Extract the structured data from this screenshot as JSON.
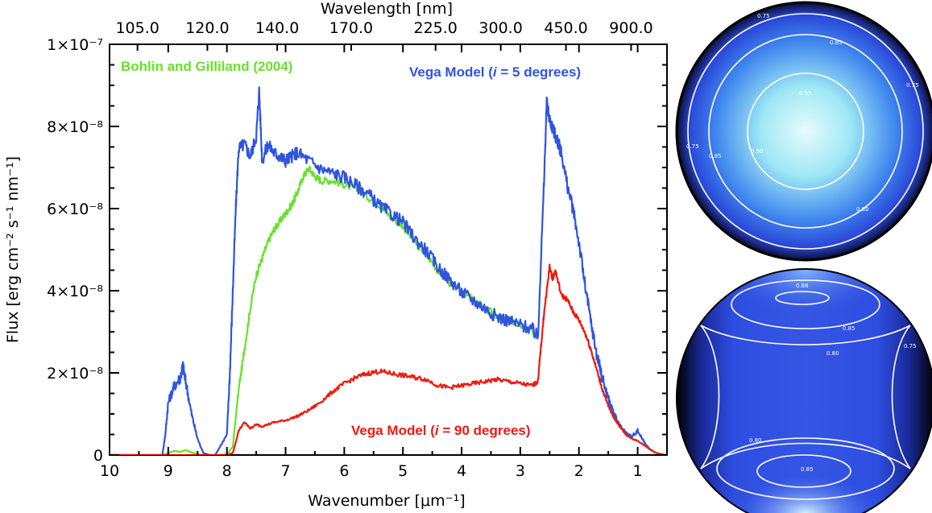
{
  "chart_data": {
    "type": "line",
    "x_axis": {
      "label": "Wavenumber [μm⁻¹]",
      "range": [
        10,
        0.5
      ],
      "ticks": [
        10,
        9,
        8,
        7,
        6,
        5,
        4,
        3,
        2,
        1
      ],
      "tick_labels": [
        "10",
        "9",
        "8",
        "7",
        "6",
        "5",
        "4",
        "3",
        "2",
        "1"
      ]
    },
    "top_axis": {
      "label": "Wavelength [nm]",
      "tick_labels": [
        "105.0",
        "120.0",
        "140.0",
        "170.0",
        "225.0",
        "300.0",
        "450.0",
        "900.0"
      ],
      "tick_wavenumbers": [
        9.524,
        8.333,
        7.143,
        5.882,
        4.444,
        3.333,
        2.222,
        1.111
      ]
    },
    "y_axis": {
      "label": "Flux [erg cm⁻² s⁻¹ nm⁻¹]",
      "range": [
        0,
        1e-07
      ],
      "ticks": [
        0,
        2e-08,
        4e-08,
        6e-08,
        8e-08,
        1e-07
      ],
      "tick_labels": [
        "0",
        "2×10⁻⁸",
        "4×10⁻⁸",
        "6×10⁻⁸",
        "8×10⁻⁸",
        "1×10⁻⁷"
      ]
    },
    "series": [
      {
        "name": "Bohlin and Gilliland (2004)",
        "color": "#66e22a",
        "x": [
          10.0,
          9.1,
          9.0,
          8.9,
          8.8,
          8.7,
          8.6,
          8.5,
          8.4,
          8.2,
          8.0,
          7.9,
          7.8,
          7.7,
          7.6,
          7.5,
          7.4,
          7.3,
          7.2,
          7.1,
          7.0,
          6.9,
          6.8,
          6.7,
          6.6,
          6.5,
          6.4,
          6.2,
          6.0,
          5.8,
          5.6,
          5.4,
          5.2,
          5.0,
          4.8,
          4.6,
          4.4,
          4.2,
          4.0,
          3.8,
          3.6,
          3.4,
          3.2,
          3.0,
          2.8,
          2.75
        ],
        "values": [
          0,
          0,
          5e-10,
          1e-09,
          8e-10,
          1.2e-09,
          6e-10,
          2e-10,
          0,
          0,
          2e-10,
          2e-09,
          1.6e-08,
          2.6e-08,
          3.6e-08,
          4.4e-08,
          4.8e-08,
          5.2e-08,
          5.5e-08,
          5.7e-08,
          5.9e-08,
          6.1e-08,
          6.4e-08,
          6.8e-08,
          7e-08,
          6.8e-08,
          6.7e-08,
          6.7e-08,
          6.6e-08,
          6.5e-08,
          6.3e-08,
          6.1e-08,
          5.8e-08,
          5.6e-08,
          5.2e-08,
          4.9e-08,
          4.5e-08,
          4.2e-08,
          4e-08,
          3.8e-08,
          3.6e-08,
          3.4e-08,
          3.3e-08,
          3.2e-08,
          3.1e-08,
          2.9e-08
        ]
      },
      {
        "name": "Vega Model (i = 5 degrees)",
        "color": "#2e54e0",
        "x": [
          10.0,
          9.1,
          9.05,
          9.0,
          8.9,
          8.8,
          8.75,
          8.7,
          8.6,
          8.5,
          8.4,
          8.3,
          8.2,
          8.0,
          7.95,
          7.9,
          7.85,
          7.8,
          7.7,
          7.6,
          7.5,
          7.45,
          7.4,
          7.3,
          7.2,
          7.1,
          7.0,
          6.9,
          6.8,
          6.6,
          6.4,
          6.2,
          6.0,
          5.8,
          5.6,
          5.4,
          5.2,
          5.0,
          4.8,
          4.6,
          4.4,
          4.2,
          4.0,
          3.8,
          3.6,
          3.4,
          3.2,
          3.0,
          2.8,
          2.7,
          2.6,
          2.55,
          2.5,
          2.45,
          2.4,
          2.35,
          2.3,
          2.2,
          2.1,
          2.0,
          1.9,
          1.8,
          1.7,
          1.6,
          1.5,
          1.4,
          1.3,
          1.2,
          1.1,
          1.0,
          0.9,
          0.8,
          0.7,
          0.6,
          0.5
        ],
        "values": [
          0,
          0,
          5e-09,
          1.3e-08,
          1.7e-08,
          1.9e-08,
          2.2e-08,
          1.8e-08,
          1e-08,
          4e-09,
          5e-10,
          0,
          0,
          5e-09,
          2e-08,
          4e-08,
          6e-08,
          7.5e-08,
          7.6e-08,
          7.3e-08,
          7.8e-08,
          8.9e-08,
          7.2e-08,
          7.6e-08,
          7.4e-08,
          7.3e-08,
          7.2e-08,
          7.3e-08,
          7.4e-08,
          7.2e-08,
          7e-08,
          6.9e-08,
          6.8e-08,
          6.6e-08,
          6.4e-08,
          6.1e-08,
          5.9e-08,
          5.7e-08,
          5.3e-08,
          5e-08,
          4.6e-08,
          4.3e-08,
          4e-08,
          3.8e-08,
          3.6e-08,
          3.4e-08,
          3.3e-08,
          3.2e-08,
          3.1e-08,
          2.9e-08,
          6.5e-08,
          8.6e-08,
          8.2e-08,
          8e-08,
          7.8e-08,
          7.6e-08,
          7.4e-08,
          6.6e-08,
          6e-08,
          5.2e-08,
          4.2e-08,
          3.3e-08,
          2.5e-08,
          1.9e-08,
          1.4e-08,
          1e-08,
          7e-09,
          5.5e-09,
          4.5e-09,
          6e-09,
          3.5e-09,
          1.5e-09,
          6e-10,
          2e-10,
          0
        ]
      },
      {
        "name": "Vega Model (i = 90 degrees)",
        "color": "#f0180c",
        "x": [
          10.0,
          8.2,
          8.0,
          7.9,
          7.85,
          7.8,
          7.7,
          7.6,
          7.5,
          7.4,
          7.2,
          7.0,
          6.8,
          6.6,
          6.4,
          6.2,
          6.0,
          5.8,
          5.6,
          5.4,
          5.2,
          5.0,
          4.8,
          4.6,
          4.4,
          4.2,
          4.0,
          3.8,
          3.6,
          3.4,
          3.2,
          3.0,
          2.8,
          2.7,
          2.65,
          2.6,
          2.55,
          2.5,
          2.45,
          2.4,
          2.3,
          2.2,
          2.1,
          2.0,
          1.9,
          1.8,
          1.7,
          1.6,
          1.5,
          1.4,
          1.3,
          1.2,
          1.1,
          1.0,
          0.9,
          0.8,
          0.7,
          0.6,
          0.5
        ],
        "values": [
          0,
          0,
          0,
          5e-10,
          3e-09,
          6e-09,
          8e-09,
          6.5e-09,
          7.5e-09,
          7e-09,
          8e-09,
          8.5e-09,
          9.5e-09,
          1.1e-08,
          1.3e-08,
          1.55e-08,
          1.75e-08,
          1.9e-08,
          2e-08,
          2.05e-08,
          2e-08,
          1.95e-08,
          1.9e-08,
          1.85e-08,
          1.7e-08,
          1.65e-08,
          1.7e-08,
          1.75e-08,
          1.8e-08,
          1.85e-08,
          1.8e-08,
          1.75e-08,
          1.7e-08,
          1.8e-08,
          2.6e-08,
          3.4e-08,
          4e-08,
          4.6e-08,
          4.3e-08,
          4.5e-08,
          3.9e-08,
          3.8e-08,
          3.5e-08,
          3.3e-08,
          3e-08,
          2.6e-08,
          2.1e-08,
          1.6e-08,
          1.2e-08,
          9e-09,
          7e-09,
          5e-09,
          4e-09,
          3.5e-09,
          2.5e-09,
          1.5e-09,
          6e-10,
          2e-10,
          0
        ]
      }
    ],
    "legend_labels": [
      {
        "name": "Bohlin and Gilliland (2004)",
        "position": "top-left"
      },
      {
        "name": "Vega Model (i = 5 degrees)",
        "position": "top-right"
      },
      {
        "name": "Vega Model (i = 90 degrees)",
        "position": "bottom-center"
      }
    ]
  },
  "legend": {
    "bohlin": "Bohlin and Gilliland (2004)",
    "vega5_pre": "Vega Model (",
    "vega5_i": "i",
    "vega5_post": " = 5 degrees)",
    "vega90_pre": "Vega Model (",
    "vega90_i": "i",
    "vega90_post": " = 90 degrees)"
  },
  "axes": {
    "xlabel": "Wavenumber [μm⁻¹]",
    "top_label": "Wavelength [nm]",
    "ylabel": "Flux [erg cm⁻² s⁻¹ nm⁻¹]"
  },
  "stellar_maps": {
    "pole_on": {
      "title": "i = 5 degrees",
      "contour_labels": [
        "0.75",
        "0.85",
        "0.95",
        "0.90",
        "0.85",
        "0.80",
        "0.75",
        "0.75"
      ]
    },
    "equator_on": {
      "title": "i = 90 degrees",
      "contour_labels": [
        "0.88",
        "0.85",
        "0.80",
        "0.75",
        "0.80",
        "0.85"
      ]
    }
  },
  "colors": {
    "bohlin": "#66e22a",
    "vega5": "#2e54e0",
    "vega90": "#f0180c"
  }
}
